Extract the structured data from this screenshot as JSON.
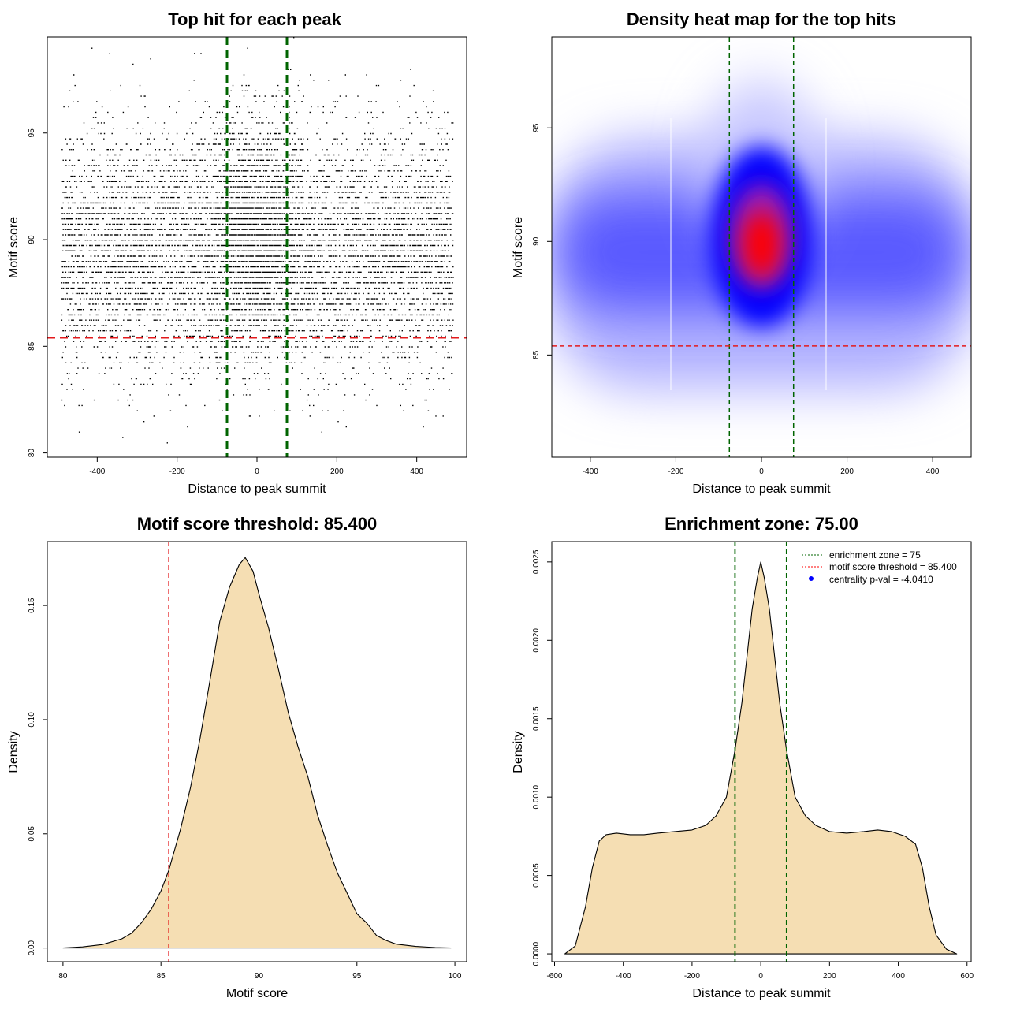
{
  "chart_data": [
    {
      "type": "scatter",
      "title": "Top hit for each peak",
      "xlabel": "Distance to peak summit",
      "ylabel": "Motif score",
      "xlim": [
        -525,
        525
      ],
      "ylim": [
        79.8,
        99.5
      ],
      "xticks": [
        -400,
        -200,
        0,
        200,
        400
      ],
      "yticks": [
        80,
        85,
        90,
        95
      ],
      "vlines": [
        -75,
        75
      ],
      "hline": 85.4,
      "point_summary": {
        "x_range": [
          -490,
          490
        ],
        "y_center": 89.5,
        "y_sd": 2.8,
        "central_x": [
          0,
          60
        ],
        "central_y_center": 90.5
      }
    },
    {
      "type": "heatmap",
      "title": "Density heat map for the top hits",
      "xlabel": "Distance to peak summit",
      "ylabel": "Motif score",
      "xlim": [
        -490,
        490
      ],
      "ylim": [
        80.5,
        99
      ],
      "xticks": [
        -400,
        -200,
        0,
        200,
        400
      ],
      "yticks": [
        85,
        90,
        95
      ],
      "vlines": [
        -75,
        75
      ],
      "hline": 85.4,
      "colors": [
        "#ffffff",
        "#0000ff",
        "#ff0000"
      ],
      "peak": {
        "x": 0,
        "y": 90
      }
    },
    {
      "type": "area",
      "title": "Motif score threshold: 85.400",
      "xlabel": "Motif score",
      "ylabel": "Density",
      "xlim": [
        79.2,
        100.6
      ],
      "ylim": [
        -0.006,
        0.178
      ],
      "xticks": [
        80,
        85,
        90,
        95,
        100
      ],
      "yticks": [
        0.0,
        0.05,
        0.1,
        0.15
      ],
      "ytick_labels": [
        "0.00",
        "0.05",
        "0.10",
        "0.15"
      ],
      "vline": 85.4,
      "fill": "#f5deb3",
      "x": [
        80,
        81,
        82,
        83,
        83.5,
        84,
        84.5,
        85,
        85.4,
        86,
        86.5,
        87,
        87.5,
        88,
        88.5,
        89,
        89.3,
        89.7,
        90,
        90.5,
        91,
        91.5,
        92,
        92.5,
        93,
        93.5,
        94,
        94.5,
        95,
        95.5,
        96,
        96.5,
        97,
        98,
        99,
        99.8
      ],
      "y": [
        0,
        0.0005,
        0.0015,
        0.004,
        0.0065,
        0.011,
        0.017,
        0.025,
        0.034,
        0.052,
        0.07,
        0.092,
        0.117,
        0.143,
        0.158,
        0.168,
        0.171,
        0.165,
        0.155,
        0.14,
        0.122,
        0.103,
        0.088,
        0.075,
        0.058,
        0.045,
        0.033,
        0.024,
        0.015,
        0.011,
        0.0055,
        0.0033,
        0.0017,
        0.0007,
        0.0002,
        0
      ]
    },
    {
      "type": "area",
      "title": "Enrichment zone: 75.00",
      "xlabel": "Distance to peak summit",
      "ylabel": "Density",
      "xlim": [
        -608,
        612
      ],
      "ylim": [
        -5e-05,
        0.00263
      ],
      "xticks": [
        -600,
        -400,
        -200,
        0,
        200,
        400,
        600
      ],
      "yticks": [
        0,
        0.0005,
        0.001,
        0.0015,
        0.002,
        0.0025
      ],
      "ytick_labels": [
        "0.0000",
        "0.0005",
        "0.0010",
        "0.0015",
        "0.0020",
        "0.0025"
      ],
      "vlines": [
        -75,
        75
      ],
      "fill": "#f5deb3",
      "x": [
        -570,
        -540,
        -510,
        -490,
        -470,
        -450,
        -420,
        -380,
        -340,
        -300,
        -250,
        -200,
        -160,
        -130,
        -100,
        -75,
        -55,
        -40,
        -25,
        -10,
        0,
        10,
        25,
        40,
        55,
        75,
        100,
        130,
        160,
        200,
        250,
        300,
        340,
        380,
        420,
        450,
        470,
        490,
        510,
        540,
        570
      ],
      "y": [
        0,
        5e-05,
        0.0003,
        0.00055,
        0.00072,
        0.00076,
        0.00077,
        0.00076,
        0.00076,
        0.00077,
        0.00078,
        0.00079,
        0.00082,
        0.00088,
        0.001,
        0.0013,
        0.0016,
        0.0019,
        0.0022,
        0.0024,
        0.0025,
        0.0024,
        0.0022,
        0.0019,
        0.0016,
        0.0013,
        0.001,
        0.00088,
        0.00082,
        0.00078,
        0.00077,
        0.00078,
        0.00079,
        0.00078,
        0.00075,
        0.0007,
        0.00055,
        0.0003,
        0.00012,
        3e-05,
        0
      ],
      "legend": {
        "position": "top-right",
        "entries": [
          {
            "label": "enrichment zone = 75",
            "color": "#006400",
            "style": "dotted-line"
          },
          {
            "label": "motif score threshold = 85.400",
            "color": "#ff0000",
            "style": "dotted-line"
          },
          {
            "label": "centrality p-val = -4.0410",
            "color": "#0000ff",
            "style": "point"
          }
        ]
      }
    }
  ]
}
